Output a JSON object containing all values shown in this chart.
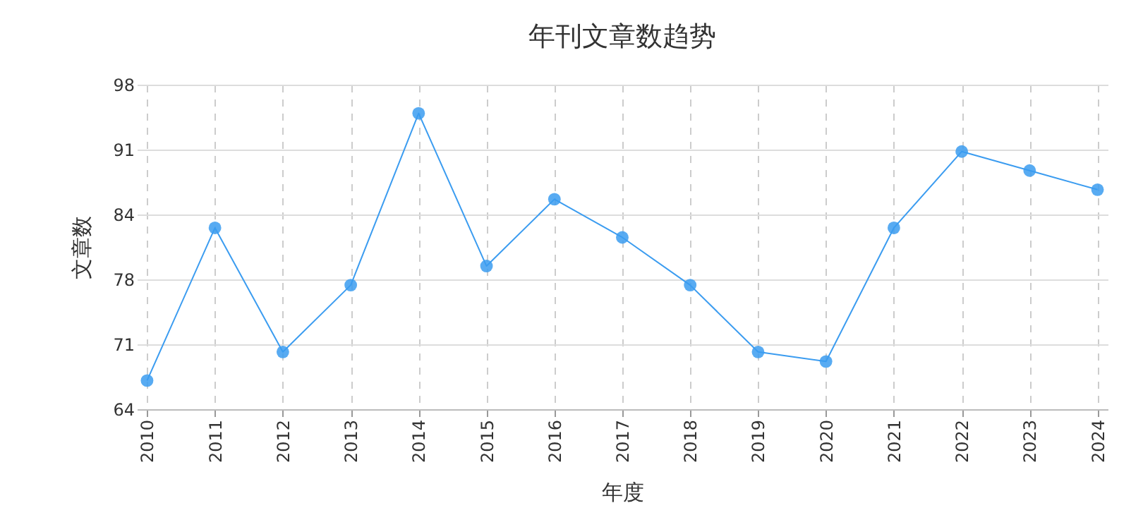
{
  "chart_data": {
    "type": "line",
    "title": "年刊文章数趋势",
    "xlabel": "年度",
    "ylabel": "文章数",
    "categories": [
      "2010",
      "2011",
      "2012",
      "2013",
      "2014",
      "2015",
      "2016",
      "2017",
      "2018",
      "2019",
      "2020",
      "2021",
      "2022",
      "2023",
      "2024"
    ],
    "series": [
      {
        "color": "#3b9cf0",
        "values": [
          67,
          83,
          70,
          77,
          95,
          79,
          86,
          82,
          77,
          70,
          69,
          83,
          91,
          89,
          87
        ]
      }
    ],
    "ylim": [
      64,
      98
    ],
    "yticks": [
      64,
      {
        "value": 70.8,
        "label": "71"
      },
      {
        "value": 77.6,
        "label": "78"
      },
      {
        "value": 84.4,
        "label": "84"
      },
      {
        "value": 91.2,
        "label": "91"
      },
      98
    ],
    "grid": true,
    "marker": "circle",
    "line_style": "solid",
    "legend": false
  }
}
